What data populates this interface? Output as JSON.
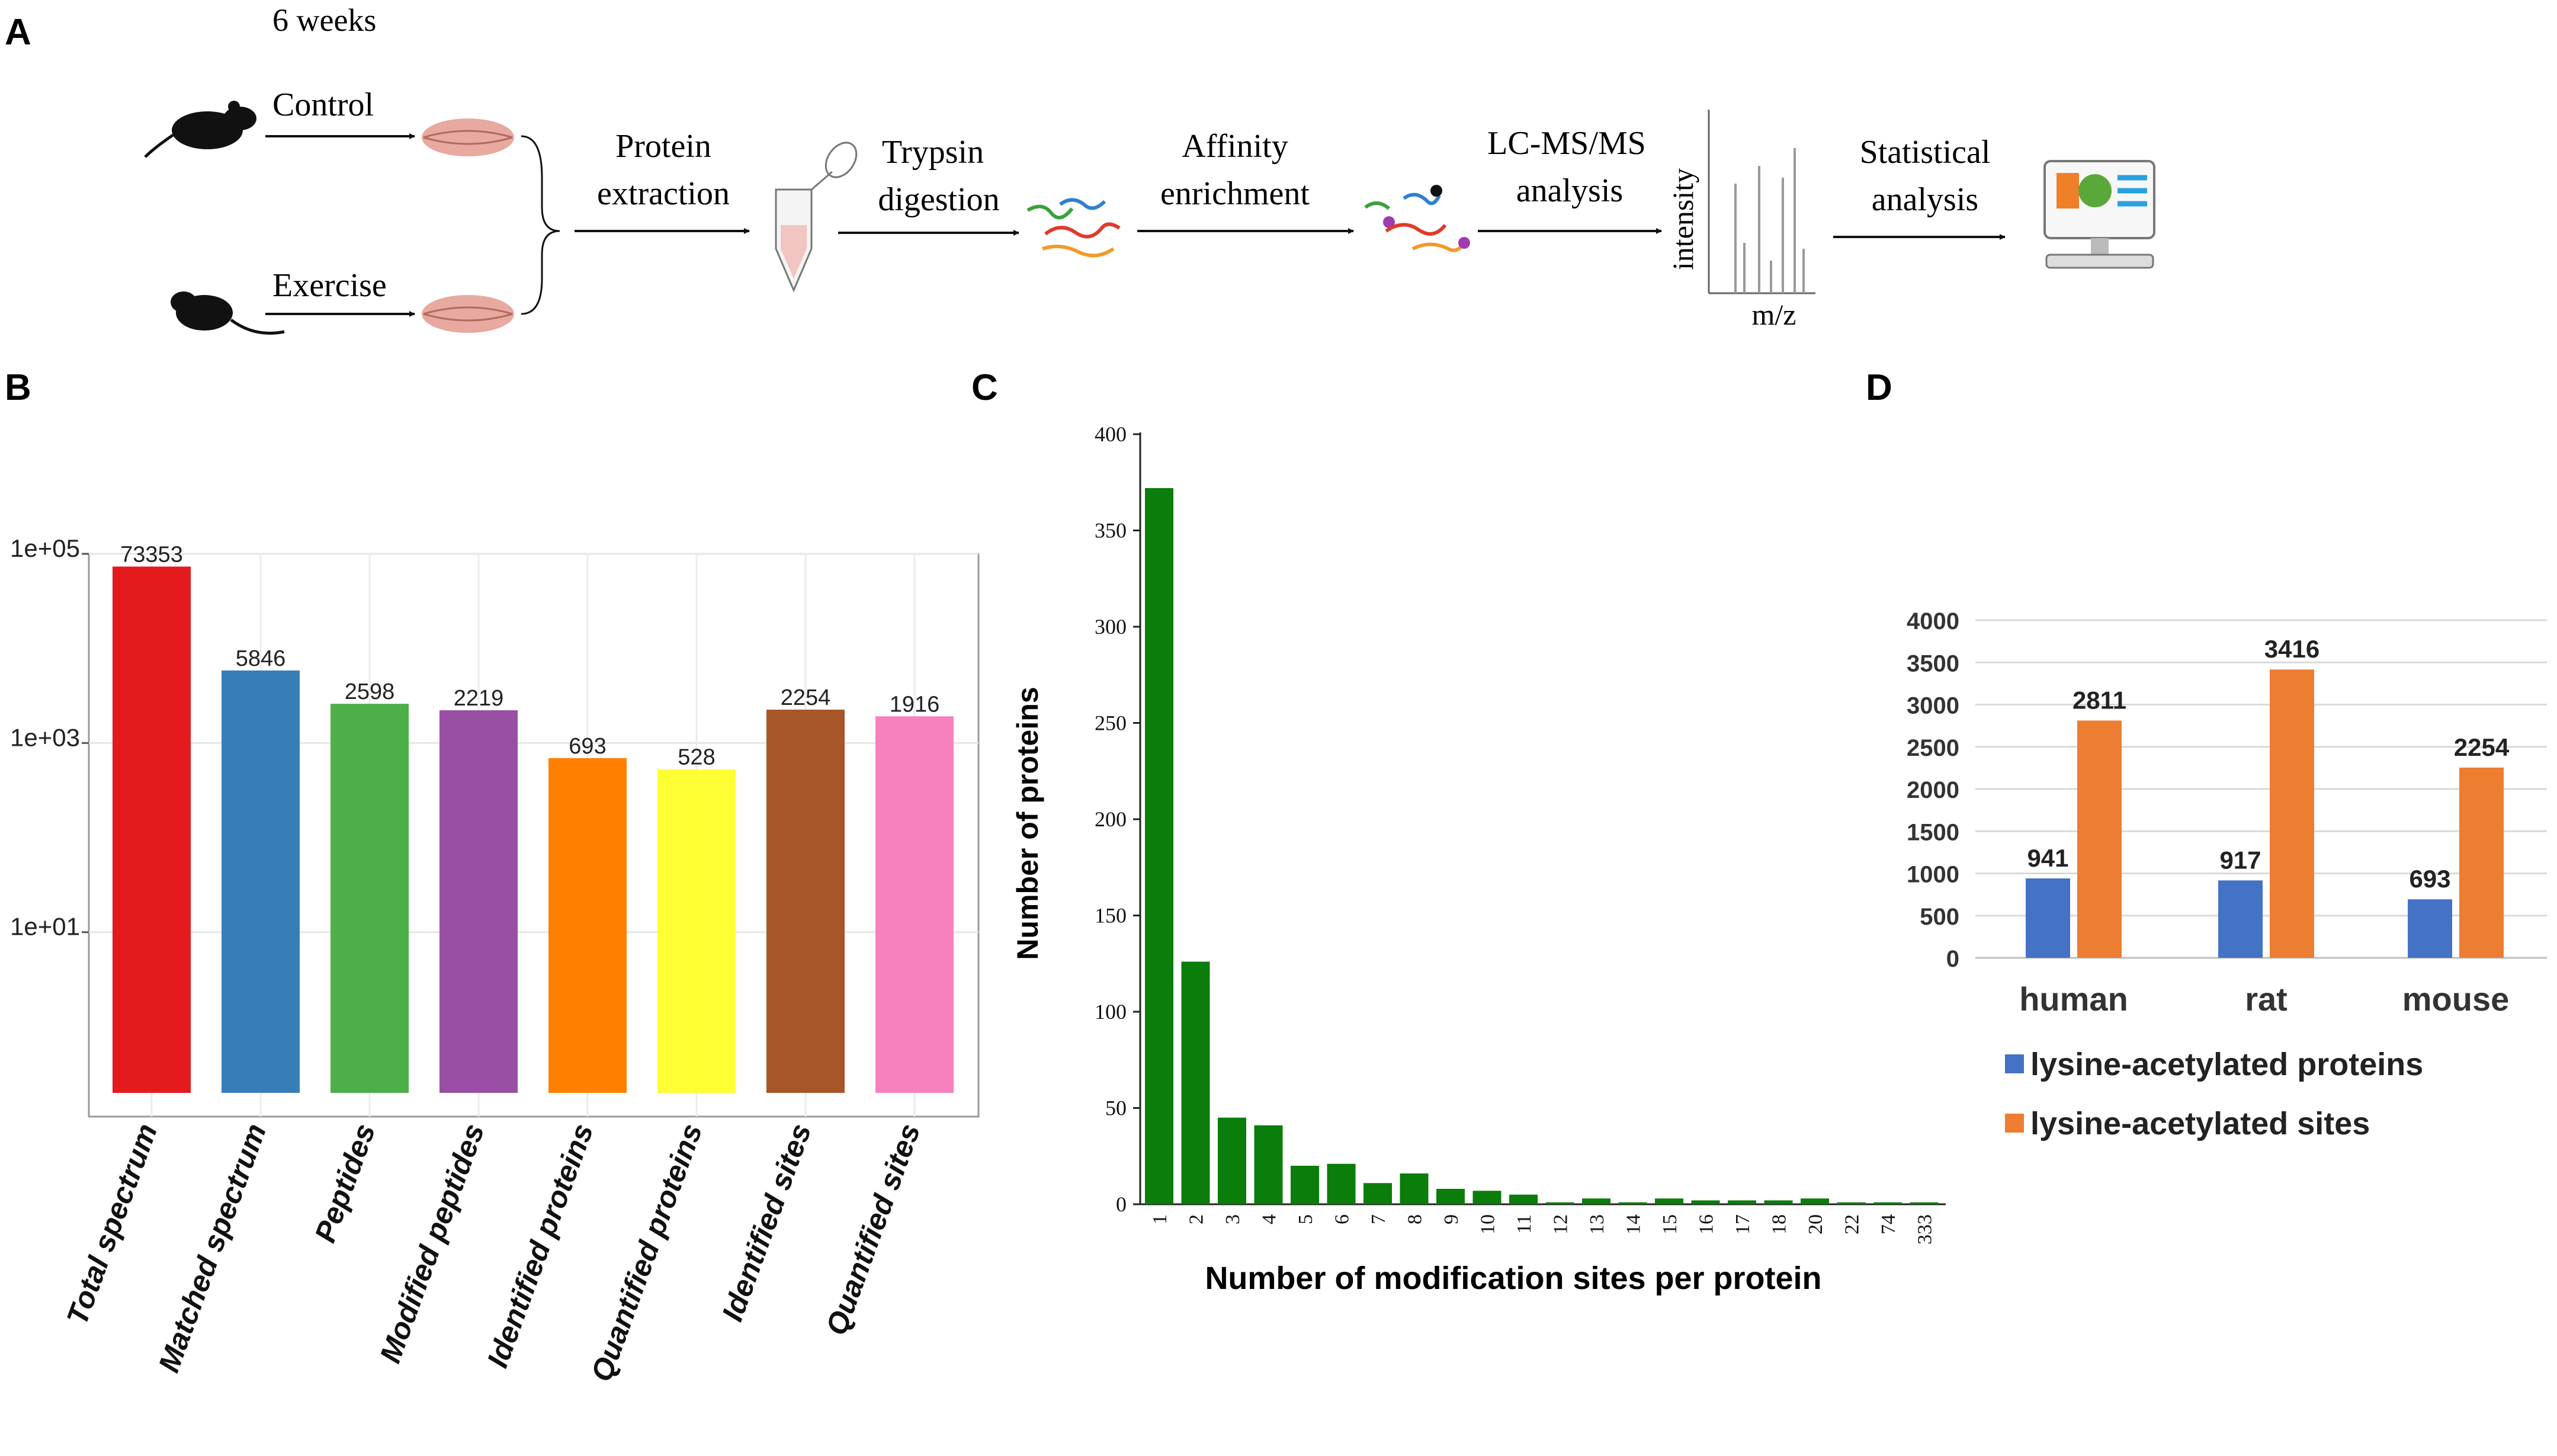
{
  "panels": {
    "A": "A",
    "B": "B",
    "C": "C",
    "D": "D"
  },
  "workflow": {
    "duration": "6 weeks",
    "control": "Control",
    "exercise": "Exercise",
    "step_protein_1": "Protein",
    "step_protein_2": "extraction",
    "step_trypsin_1": "Trypsin",
    "step_trypsin_2": "digestion",
    "step_affinity_1": "Affinity",
    "step_affinity_2": "enrichment",
    "step_lcms_1": "LC-MS/MS",
    "step_lcms_2": "analysis",
    "step_stat_1": "Statistical",
    "step_stat_2": "analysis",
    "spectrum_ylabel": "intensity",
    "spectrum_xlabel": "m/z"
  },
  "colors": {
    "bar_green": "#0a7d0a",
    "human_blue": "#4472c4",
    "site_orange": "#ed7d31"
  },
  "chart_data": [
    {
      "panel": "B",
      "type": "bar",
      "scale": "log10",
      "categories": [
        "Total spectrum",
        "Matched spectrum",
        "Peptides",
        "Modified peptides",
        "Identified proteins",
        "Quantified proteins",
        "Identified sites",
        "Quantified sites"
      ],
      "values": [
        73353,
        5846,
        2598,
        2219,
        693,
        528,
        2254,
        1916
      ],
      "value_labels": [
        "73353",
        "5846",
        "2598",
        "2219",
        "693",
        "528",
        "2254",
        "1916"
      ],
      "colors": [
        "#e41a1c",
        "#377eb8",
        "#4daf4a",
        "#984ea3",
        "#ff7f00",
        "#ffff33",
        "#a65628",
        "#f781bf"
      ],
      "yticks": [
        10.0,
        1000.0,
        100000.0
      ],
      "ytick_labels": [
        "1e+01",
        "1e+03",
        "1e+05"
      ],
      "ylim": [
        0.2,
        100000
      ],
      "grid": true
    },
    {
      "panel": "C",
      "type": "bar",
      "categories": [
        "1",
        "2",
        "3",
        "4",
        "5",
        "6",
        "7",
        "8",
        "9",
        "10",
        "11",
        "12",
        "13",
        "14",
        "15",
        "16",
        "17",
        "18",
        "20",
        "22",
        "74",
        "333"
      ],
      "values": [
        372,
        126,
        45,
        41,
        20,
        21,
        11,
        16,
        8,
        7,
        5,
        1,
        3,
        1,
        3,
        2,
        2,
        2,
        3,
        1,
        1,
        1
      ],
      "ylim": [
        0,
        400
      ],
      "yticks": [
        0,
        50,
        100,
        150,
        200,
        250,
        300,
        350,
        400
      ],
      "ytick_labels": [
        "0",
        "50",
        "100",
        "150",
        "200",
        "250",
        "300",
        "350",
        "400"
      ],
      "xlabel": "Number of modification sites per protein",
      "ylabel": "Number of proteins"
    },
    {
      "panel": "D",
      "type": "bar",
      "categories": [
        "human",
        "rat",
        "mouse"
      ],
      "series": [
        {
          "name": "lysine-acetylated proteins",
          "values": [
            941,
            917,
            693
          ],
          "labels": [
            "941",
            "917",
            "693"
          ]
        },
        {
          "name": "lysine-acetylated sites",
          "values": [
            2811,
            3416,
            2254
          ],
          "labels": [
            "2811",
            "3416",
            "2254"
          ]
        }
      ],
      "ylim": [
        0,
        4000
      ],
      "yticks": [
        0,
        500,
        1000,
        1500,
        2000,
        2500,
        3000,
        3500,
        4000
      ],
      "ytick_labels": [
        "0",
        "500",
        "1000",
        "1500",
        "2000",
        "2500",
        "3000",
        "3500",
        "4000"
      ],
      "grid": true,
      "legend": "bottom"
    }
  ]
}
